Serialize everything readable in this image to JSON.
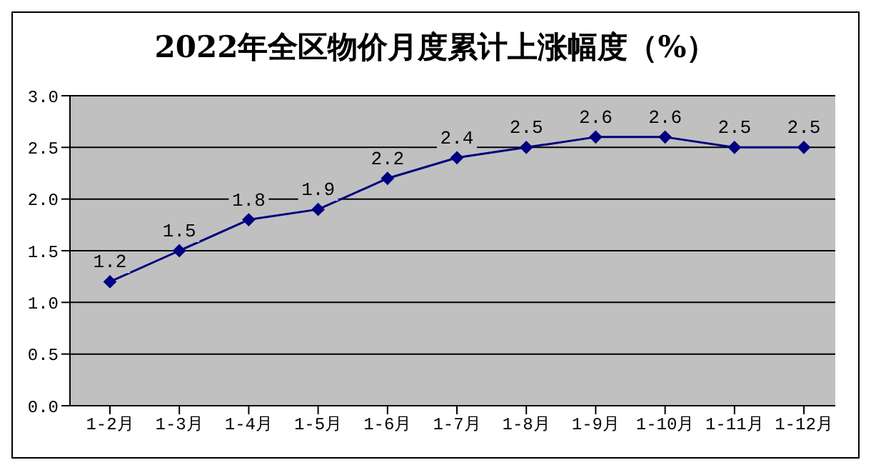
{
  "chart_data": {
    "type": "line",
    "title": "2022年全区物价月度累计上涨幅度（%）",
    "categories": [
      "1-2月",
      "1-3月",
      "1-4月",
      "1-5月",
      "1-6月",
      "1-7月",
      "1-8月",
      "1-9月",
      "1-10月",
      "1-11月",
      "1-12月"
    ],
    "series": [
      {
        "color": "#000080",
        "values": [
          1.2,
          1.5,
          1.8,
          1.9,
          2.2,
          2.4,
          2.5,
          2.6,
          2.6,
          2.5,
          2.5
        ]
      }
    ],
    "ylim": [
      0,
      3
    ],
    "yticks": [
      {
        "value": 0,
        "label": "0.0"
      },
      {
        "value": 0.5,
        "label": "0.5"
      },
      {
        "value": 1,
        "label": "1.0"
      },
      {
        "value": 1.5,
        "label": "1.5"
      },
      {
        "value": 2,
        "label": "2.0"
      },
      {
        "value": 2.5,
        "label": "2.5"
      },
      {
        "value": 3,
        "label": "3.0"
      }
    ],
    "grid": "y",
    "marker": "diamond",
    "line_style": "solid",
    "data_labels": true
  }
}
